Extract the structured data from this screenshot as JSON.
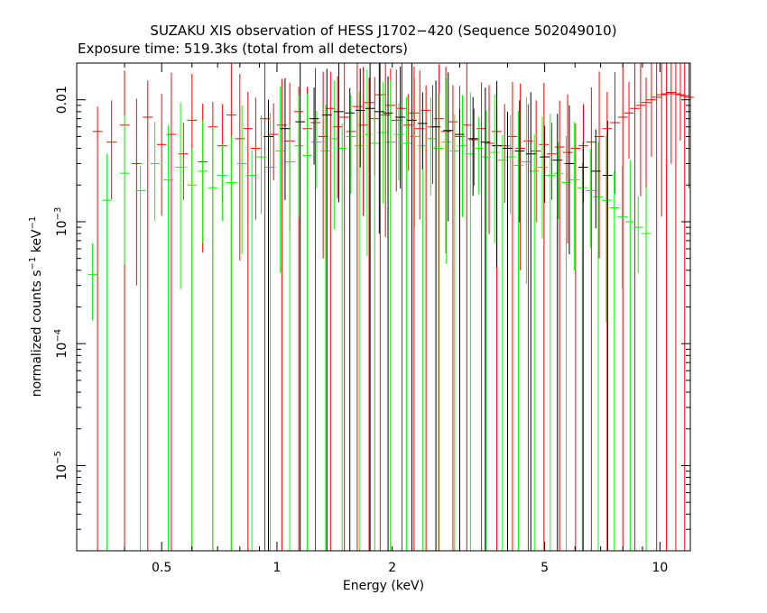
{
  "chart_data": {
    "type": "scatter",
    "title": "SUZAKU XIS observation of HESS J1702−420 (Sequence 502049010)",
    "subtitle": "Exposure time: 519.3ks (total from all detectors)",
    "xlabel": "Energy (keV)",
    "ylabel": {
      "main": "normalized counts s",
      "sup1": "−1",
      "mid": " keV",
      "sup2": "−1"
    },
    "x_scale": "log",
    "y_scale": "log",
    "xlim": [
      0.3,
      12.0
    ],
    "ylim": [
      2e-06,
      0.02
    ],
    "grid": false,
    "x_ticks": [
      {
        "value": 0.5,
        "label": "0.5"
      },
      {
        "value": 1,
        "label": "1"
      },
      {
        "value": 2,
        "label": "2"
      },
      {
        "value": 5,
        "label": "5"
      },
      {
        "value": 10,
        "label": "10"
      }
    ],
    "y_ticks": [
      {
        "value": 1e-05,
        "base": "10",
        "exp": "−5"
      },
      {
        "value": 0.0001,
        "base": "10",
        "exp": "−4"
      },
      {
        "value": 0.001,
        "base": "10",
        "exp": "−3"
      },
      {
        "value": 0.01,
        "label": "0.01"
      }
    ],
    "series": [
      {
        "color": "#ff0000",
        "points": [
          [
            0.34,
            0.0055
          ],
          [
            0.37,
            0.0045
          ],
          [
            0.4,
            0.0062
          ],
          [
            0.43,
            0.003
          ],
          [
            0.46,
            0.0072
          ],
          [
            0.5,
            0.0043
          ],
          [
            0.53,
            0.0052
          ],
          [
            0.57,
            0.0036
          ],
          [
            0.6,
            0.0068
          ],
          [
            0.64,
            0.0031
          ],
          [
            0.68,
            0.006
          ],
          [
            0.72,
            0.0042
          ],
          [
            0.76,
            0.0075
          ],
          [
            0.8,
            0.0048
          ],
          [
            0.84,
            0.0058
          ],
          [
            0.88,
            0.004
          ],
          [
            0.93,
            0.007
          ],
          [
            0.98,
            0.0052
          ],
          [
            1.03,
            0.0062
          ],
          [
            1.08,
            0.0046
          ],
          [
            1.14,
            0.008
          ],
          [
            1.2,
            0.0058
          ],
          [
            1.26,
            0.0065
          ],
          [
            1.32,
            0.005
          ],
          [
            1.38,
            0.0085
          ],
          [
            1.44,
            0.006
          ],
          [
            1.5,
            0.0072
          ],
          [
            1.56,
            0.0055
          ],
          [
            1.62,
            0.0088
          ],
          [
            1.68,
            0.0062
          ],
          [
            1.74,
            0.0095
          ],
          [
            1.8,
            0.007
          ],
          [
            1.86,
            0.011
          ],
          [
            1.92,
            0.0075
          ],
          [
            1.98,
            0.009
          ],
          [
            2.05,
            0.0068
          ],
          [
            2.12,
            0.0085
          ],
          [
            2.2,
            0.0062
          ],
          [
            2.28,
            0.0078
          ],
          [
            2.36,
            0.0058
          ],
          [
            2.45,
            0.0082
          ],
          [
            2.55,
            0.006
          ],
          [
            2.65,
            0.007
          ],
          [
            2.76,
            0.0055
          ],
          [
            2.88,
            0.0066
          ],
          [
            3.0,
            0.005
          ],
          [
            3.13,
            0.0062
          ],
          [
            3.27,
            0.0047
          ],
          [
            3.42,
            0.0058
          ],
          [
            3.58,
            0.0044
          ],
          [
            3.75,
            0.0055
          ],
          [
            3.93,
            0.0042
          ],
          [
            4.12,
            0.005
          ],
          [
            4.32,
            0.004
          ],
          [
            4.53,
            0.0046
          ],
          [
            4.75,
            0.0038
          ],
          [
            4.98,
            0.0043
          ],
          [
            5.22,
            0.0036
          ],
          [
            5.47,
            0.0041
          ],
          [
            5.74,
            0.0037
          ],
          [
            6.02,
            0.004
          ],
          [
            6.31,
            0.0042
          ],
          [
            6.62,
            0.0045
          ],
          [
            6.94,
            0.005
          ],
          [
            7.28,
            0.0058
          ],
          [
            7.63,
            0.0065
          ],
          [
            8.0,
            0.0072
          ],
          [
            8.3,
            0.0078
          ],
          [
            8.6,
            0.0085
          ],
          [
            8.9,
            0.009
          ],
          [
            9.2,
            0.0095
          ],
          [
            9.5,
            0.01
          ],
          [
            9.8,
            0.0105
          ],
          [
            10.1,
            0.011
          ],
          [
            10.4,
            0.0112
          ],
          [
            10.7,
            0.0115
          ],
          [
            11.0,
            0.0112
          ],
          [
            11.3,
            0.011
          ],
          [
            11.6,
            0.0108
          ],
          [
            11.9,
            0.0105
          ]
        ]
      },
      {
        "color": "#00ff00",
        "points": [
          [
            0.33,
            0.00037
          ],
          [
            0.36,
            0.0015
          ],
          [
            0.4,
            0.0025
          ],
          [
            0.44,
            0.0018
          ],
          [
            0.48,
            0.003
          ],
          [
            0.52,
            0.0022
          ],
          [
            0.56,
            0.0028
          ],
          [
            0.6,
            0.002
          ],
          [
            0.64,
            0.0026
          ],
          [
            0.68,
            0.0019
          ],
          [
            0.72,
            0.0024
          ],
          [
            0.76,
            0.0021
          ],
          [
            0.81,
            0.003
          ],
          [
            0.86,
            0.0024
          ],
          [
            0.91,
            0.0034
          ],
          [
            0.96,
            0.0028
          ],
          [
            1.02,
            0.0038
          ],
          [
            1.08,
            0.0031
          ],
          [
            1.14,
            0.0042
          ],
          [
            1.2,
            0.0035
          ],
          [
            1.27,
            0.0045
          ],
          [
            1.34,
            0.0038
          ],
          [
            1.41,
            0.0048
          ],
          [
            1.48,
            0.004
          ],
          [
            1.56,
            0.005
          ],
          [
            1.64,
            0.0042
          ],
          [
            1.72,
            0.0052
          ],
          [
            1.8,
            0.0044
          ],
          [
            1.89,
            0.0054
          ],
          [
            1.98,
            0.0045
          ],
          [
            2.08,
            0.0052
          ],
          [
            2.18,
            0.0044
          ],
          [
            2.29,
            0.005
          ],
          [
            2.4,
            0.0042
          ],
          [
            2.52,
            0.0048
          ],
          [
            2.64,
            0.004
          ],
          [
            2.77,
            0.0045
          ],
          [
            2.91,
            0.0038
          ],
          [
            3.05,
            0.0042
          ],
          [
            3.2,
            0.0036
          ],
          [
            3.36,
            0.004
          ],
          [
            3.52,
            0.0034
          ],
          [
            3.7,
            0.0037
          ],
          [
            3.88,
            0.0032
          ],
          [
            4.07,
            0.0034
          ],
          [
            4.27,
            0.0029
          ],
          [
            4.48,
            0.0031
          ],
          [
            4.7,
            0.0026
          ],
          [
            4.93,
            0.0028
          ],
          [
            5.17,
            0.0024
          ],
          [
            5.43,
            0.0025
          ],
          [
            5.69,
            0.0021
          ],
          [
            5.97,
            0.0022
          ],
          [
            6.27,
            0.0019
          ],
          [
            6.58,
            0.0018
          ],
          [
            6.9,
            0.0016
          ],
          [
            7.24,
            0.0015
          ],
          [
            7.6,
            0.0013
          ],
          [
            7.97,
            0.0011
          ],
          [
            8.36,
            0.001
          ],
          [
            8.77,
            0.0009
          ],
          [
            9.2,
            0.0008
          ]
        ]
      },
      {
        "color": "#000000",
        "points": [
          [
            0.95,
            0.005
          ],
          [
            1.05,
            0.0058
          ],
          [
            1.15,
            0.0066
          ],
          [
            1.25,
            0.007
          ],
          [
            1.35,
            0.0075
          ],
          [
            1.45,
            0.008
          ],
          [
            1.55,
            0.0078
          ],
          [
            1.65,
            0.0082
          ],
          [
            1.75,
            0.0085
          ],
          [
            1.85,
            0.008
          ],
          [
            1.95,
            0.0078
          ],
          [
            2.1,
            0.0072
          ],
          [
            2.25,
            0.0068
          ],
          [
            2.4,
            0.0064
          ],
          [
            2.6,
            0.006
          ],
          [
            2.8,
            0.0056
          ],
          [
            3.0,
            0.0052
          ],
          [
            3.25,
            0.0048
          ],
          [
            3.5,
            0.0045
          ],
          [
            3.75,
            0.0042
          ],
          [
            4.0,
            0.004
          ],
          [
            4.3,
            0.0038
          ],
          [
            4.6,
            0.0036
          ],
          [
            5.0,
            0.0034
          ],
          [
            5.4,
            0.0032
          ],
          [
            5.8,
            0.003
          ],
          [
            6.3,
            0.0028
          ],
          [
            6.8,
            0.0026
          ],
          [
            7.3,
            0.0024
          ]
        ]
      }
    ]
  }
}
